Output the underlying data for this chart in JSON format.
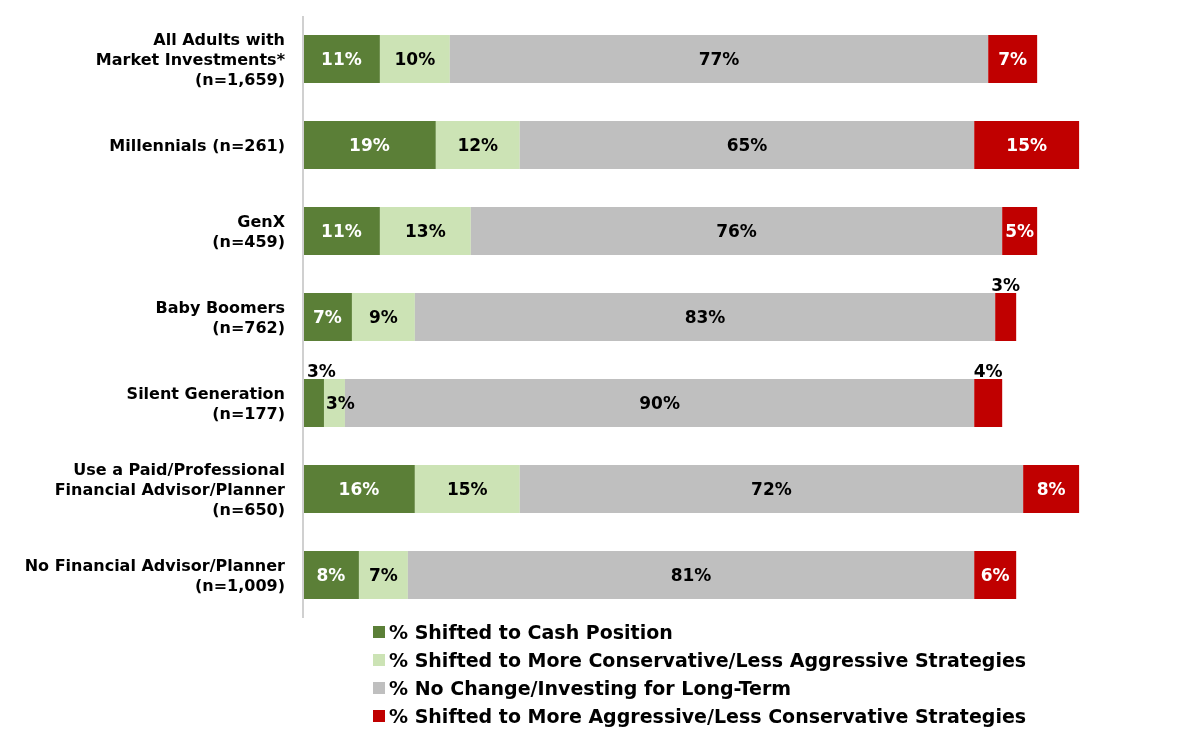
{
  "chart_data": {
    "type": "bar",
    "orientation": "horizontal",
    "stacked": true,
    "legend": "bottom",
    "categories": [
      "All Adults with\nMarket Investments*\n(n=1,659)",
      "Millennials (n=261)",
      "GenX\n(n=459)",
      "Baby Boomers\n(n=762)",
      "Silent Generation\n(n=177)",
      "Use a Paid/Professional\nFinancial Advisor/Planner\n(n=650)",
      "No Financial Advisor/Planner\n(n=1,009)"
    ],
    "series": [
      {
        "name": "% Shifted to Cash Position",
        "color": "#5b7f37",
        "values": [
          11,
          19,
          11,
          7,
          3,
          16,
          8
        ],
        "value_labels": [
          "11%",
          "19%",
          "11%",
          "7%",
          "3%",
          "16%",
          "8%"
        ]
      },
      {
        "name": "% Shifted to More Conservative/Less Aggressive Strategies",
        "color": "#cce3b5",
        "values": [
          10,
          12,
          13,
          9,
          3,
          15,
          7
        ],
        "value_labels": [
          "10%",
          "12%",
          "13%",
          "9%",
          "3%",
          "15%",
          "7%"
        ]
      },
      {
        "name": "% No Change/Investing for Long-Term",
        "color": "#bfbfbf",
        "values": [
          77,
          65,
          76,
          83,
          90,
          72,
          81
        ],
        "value_labels": [
          "77%",
          "65%",
          "76%",
          "83%",
          "90%",
          "72%",
          "81%"
        ]
      },
      {
        "name": "% Shifted to More Aggressive/Less Conservative Strategies",
        "color": "#c00000",
        "values": [
          7,
          15,
          5,
          3,
          4,
          8,
          6
        ],
        "value_labels": [
          "7%",
          "15%",
          "5%",
          "3%",
          "4%",
          "8%",
          "6%"
        ]
      }
    ]
  }
}
